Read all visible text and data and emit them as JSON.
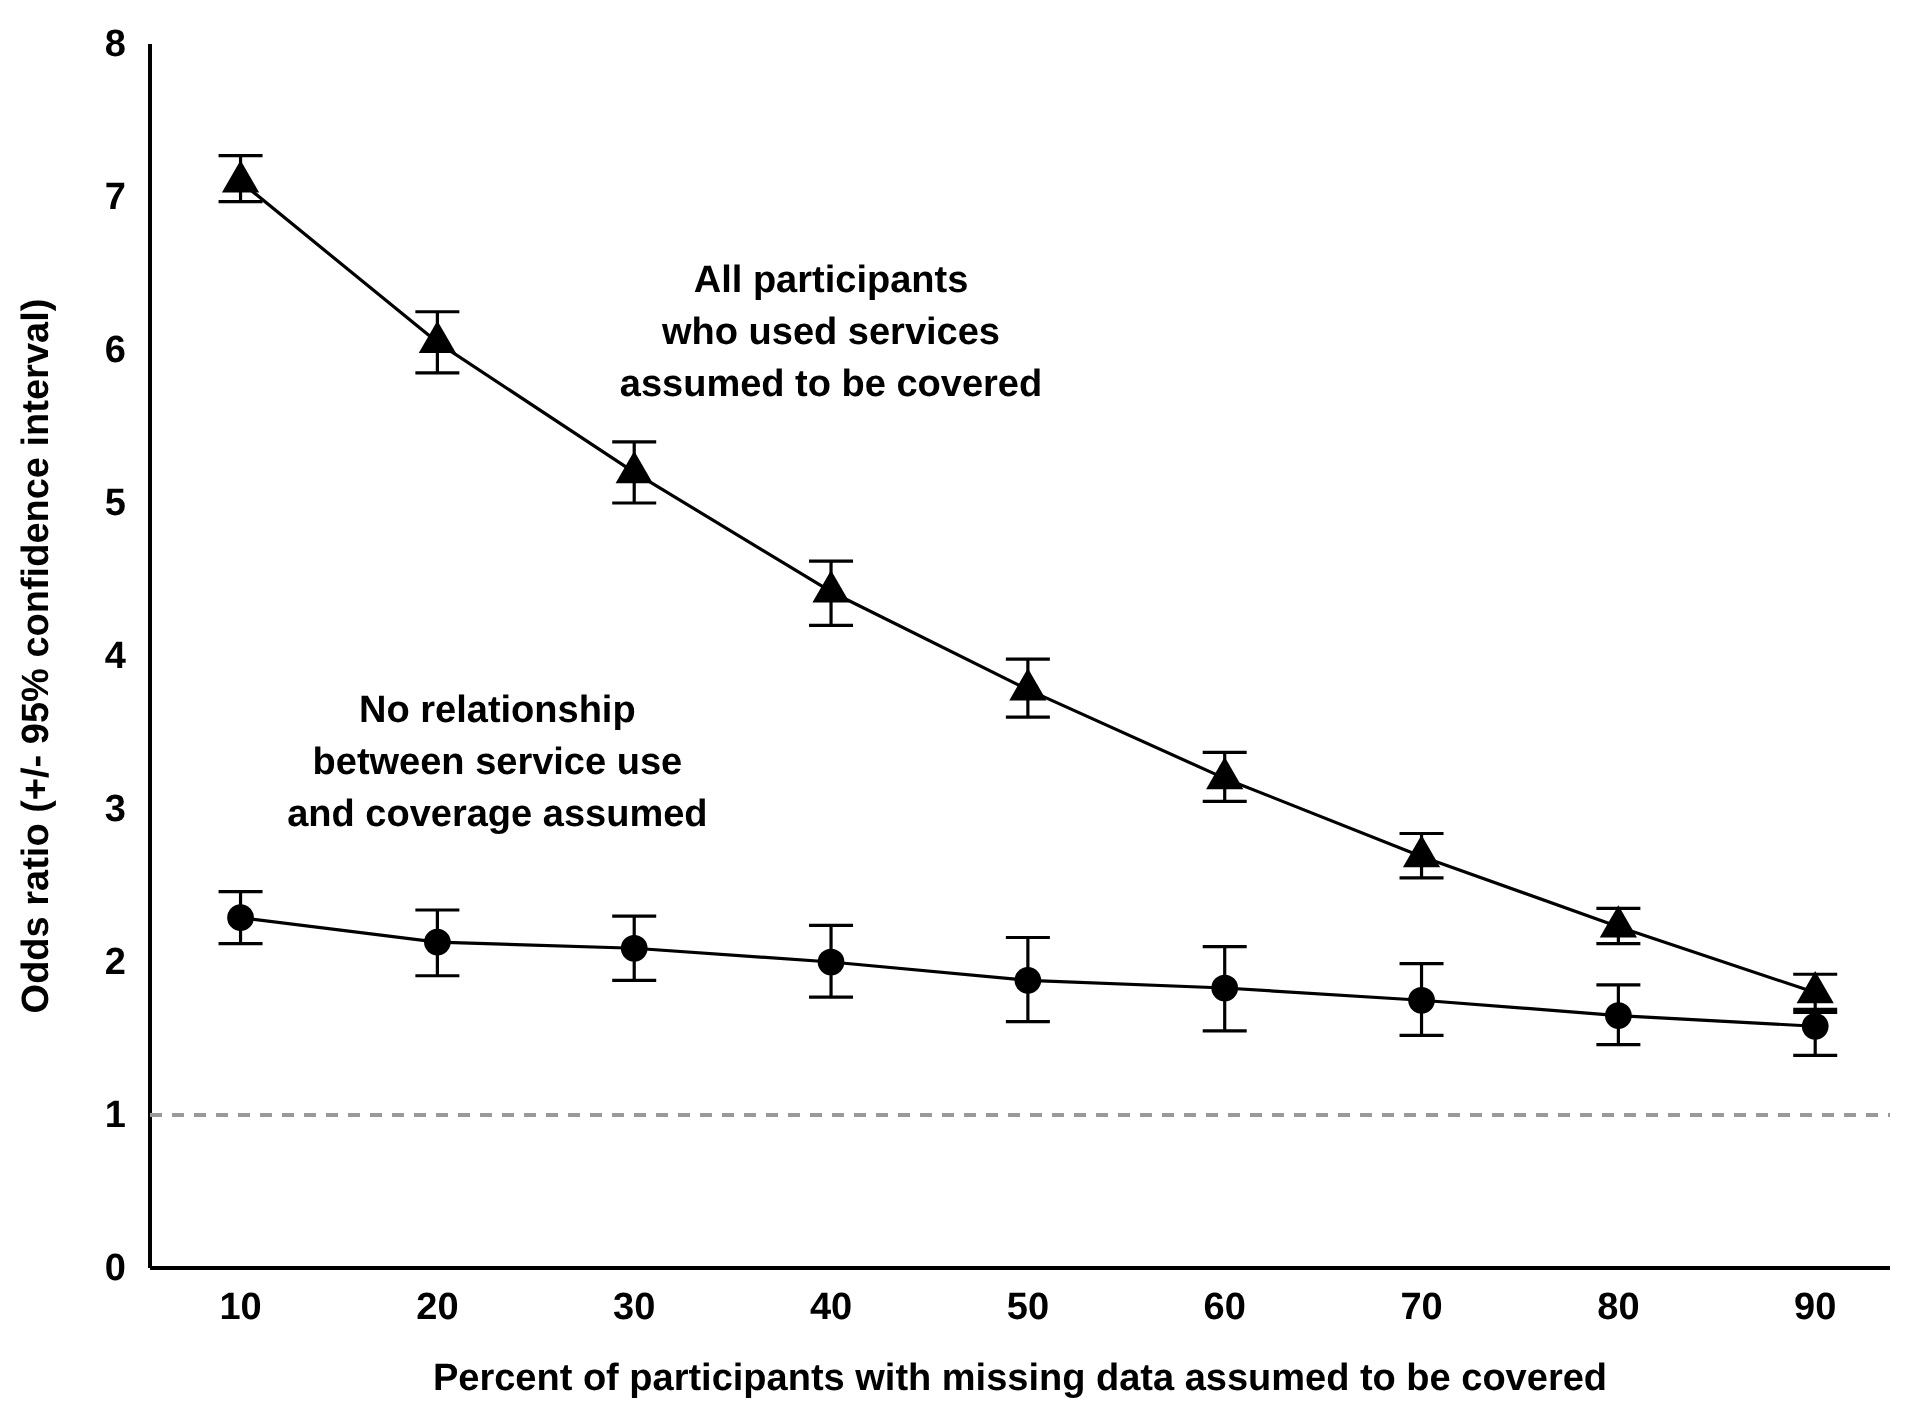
{
  "chart_data": {
    "type": "line",
    "xlabel": "Percent of participants with missing data assumed to be covered",
    "ylabel": "Odds ratio (+/- 95% confidence interval)",
    "x": [
      10,
      20,
      30,
      40,
      50,
      60,
      70,
      80,
      90
    ],
    "xlim": [
      5.4,
      93.8
    ],
    "xticks": [
      10,
      20,
      30,
      40,
      50,
      60,
      70,
      80,
      90
    ],
    "ylim": [
      0,
      8
    ],
    "yticks": [
      0,
      1,
      2,
      3,
      4,
      5,
      6,
      7,
      8
    ],
    "grid": false,
    "legend": false,
    "line_style": "solid",
    "series": [
      {
        "name": "All participants\nwho used services\nassumed to be covered",
        "color": "#000000",
        "marker": "triangle",
        "values": [
          7.1,
          6.05,
          5.2,
          4.42,
          3.78,
          3.2,
          2.69,
          2.23,
          1.8
        ],
        "errors": [
          [
            6.97,
            7.27
          ],
          [
            5.85,
            6.25
          ],
          [
            5.0,
            5.4
          ],
          [
            4.2,
            4.62
          ],
          [
            3.6,
            3.98
          ],
          [
            3.05,
            3.37
          ],
          [
            2.55,
            2.84
          ],
          [
            2.12,
            2.35
          ],
          [
            1.67,
            1.92
          ]
        ]
      },
      {
        "name": "No relationship\nbetween service use\nand coverage assumed",
        "color": "#000000",
        "marker": "circle",
        "values": [
          2.29,
          2.13,
          2.09,
          2.0,
          1.88,
          1.83,
          1.75,
          1.65,
          1.58
        ],
        "errors": [
          [
            2.12,
            2.46
          ],
          [
            1.91,
            2.34
          ],
          [
            1.88,
            2.3
          ],
          [
            1.77,
            2.24
          ],
          [
            1.61,
            2.16
          ],
          [
            1.55,
            2.1
          ],
          [
            1.52,
            1.99
          ],
          [
            1.46,
            1.85
          ],
          [
            1.39,
            1.69
          ]
        ]
      }
    ],
    "ref_lines": [
      {
        "axis": "y",
        "value": 1,
        "color": "#999999",
        "line_style": "dashed"
      }
    ]
  }
}
